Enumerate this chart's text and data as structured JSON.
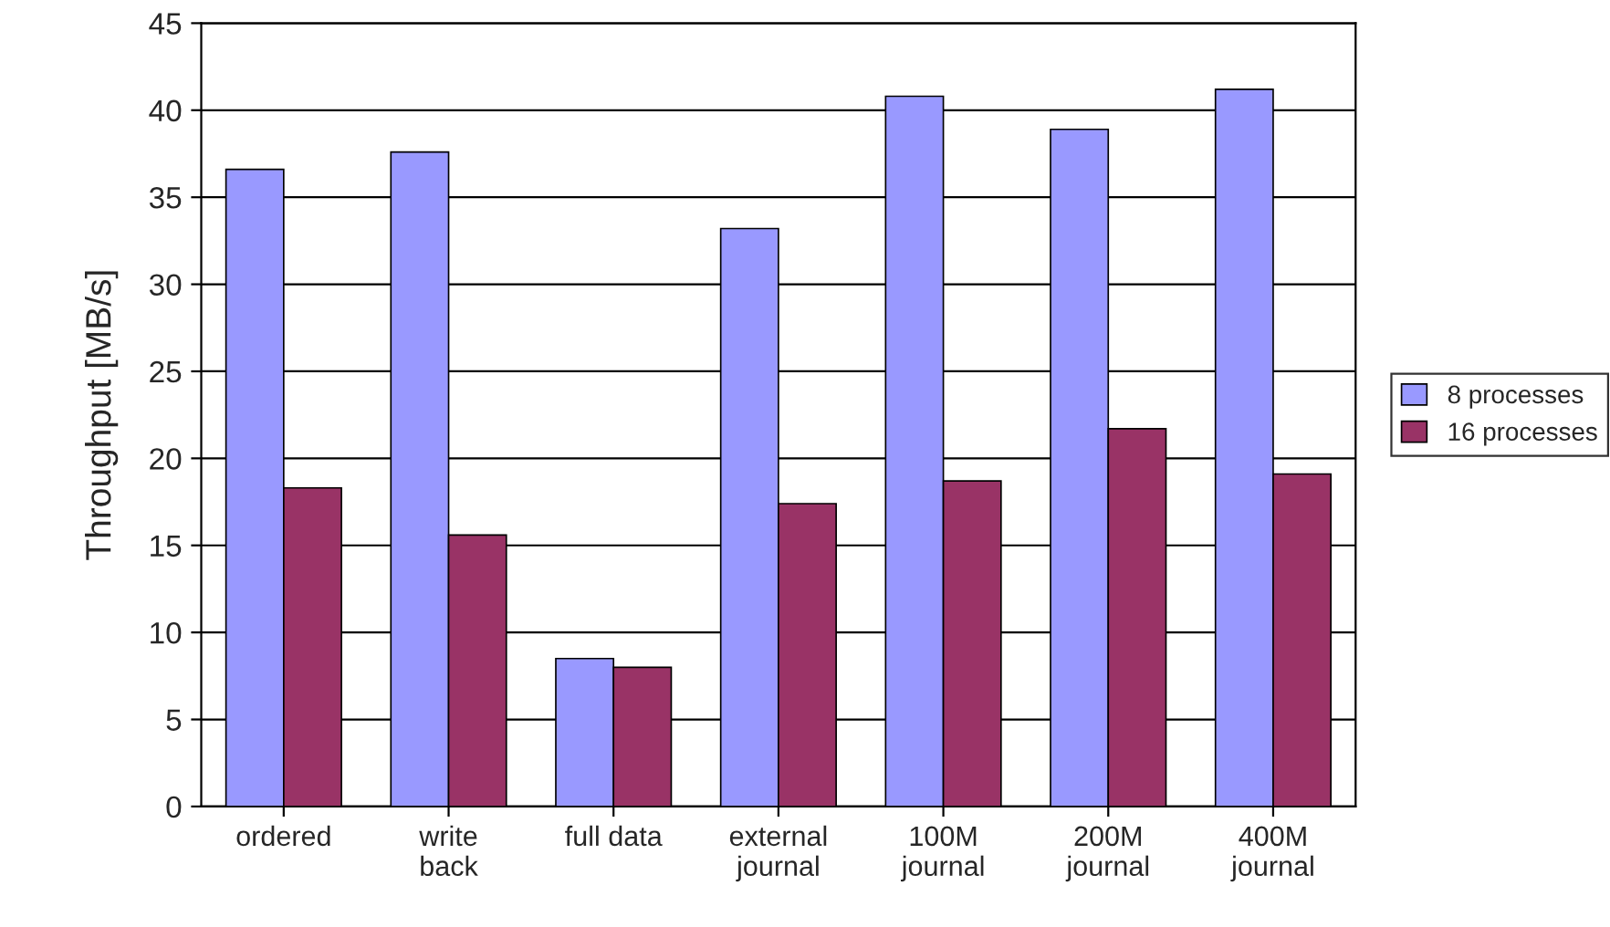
{
  "chart_data": {
    "type": "bar",
    "ylabel": "Throughput [MB/s]",
    "categories": [
      "ordered",
      "write\nback",
      "full data",
      "external\njournal",
      "100M\njournal",
      "200M\njournal",
      "400M\njournal"
    ],
    "series": [
      {
        "name": "8 processes",
        "color": "#9999ff",
        "values": [
          36.6,
          37.6,
          8.5,
          33.2,
          40.8,
          38.9,
          41.2
        ]
      },
      {
        "name": "16 processes",
        "color": "#993366",
        "values": [
          18.3,
          15.6,
          8.0,
          17.4,
          18.7,
          21.7,
          19.1
        ]
      }
    ],
    "ylim": [
      0,
      45
    ],
    "yticks": [
      0,
      5,
      10,
      15,
      20,
      25,
      30,
      35,
      40,
      45
    ],
    "grid": "y",
    "legend": "right"
  }
}
